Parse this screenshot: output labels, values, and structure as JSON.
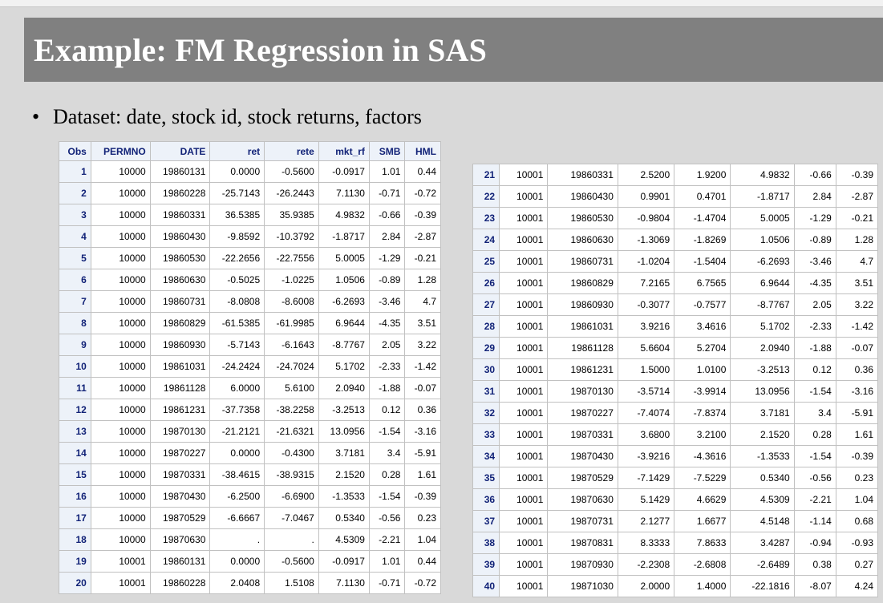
{
  "slide": {
    "title": "Example: FM Regression in SAS",
    "bullet_marker": "•",
    "bullet_text": "Dataset:  date, stock id, stock returns, factors"
  },
  "left_table": {
    "columns": [
      "Obs",
      "PERMNO",
      "DATE",
      "ret",
      "rete",
      "mkt_rf",
      "SMB",
      "HML"
    ],
    "rows": [
      [
        "1",
        "10000",
        "19860131",
        "0.0000",
        "-0.5600",
        "-0.0917",
        "1.01",
        "0.44"
      ],
      [
        "2",
        "10000",
        "19860228",
        "-25.7143",
        "-26.2443",
        "7.1130",
        "-0.71",
        "-0.72"
      ],
      [
        "3",
        "10000",
        "19860331",
        "36.5385",
        "35.9385",
        "4.9832",
        "-0.66",
        "-0.39"
      ],
      [
        "4",
        "10000",
        "19860430",
        "-9.8592",
        "-10.3792",
        "-1.8717",
        "2.84",
        "-2.87"
      ],
      [
        "5",
        "10000",
        "19860530",
        "-22.2656",
        "-22.7556",
        "5.0005",
        "-1.29",
        "-0.21"
      ],
      [
        "6",
        "10000",
        "19860630",
        "-0.5025",
        "-1.0225",
        "1.0506",
        "-0.89",
        "1.28"
      ],
      [
        "7",
        "10000",
        "19860731",
        "-8.0808",
        "-8.6008",
        "-6.2693",
        "-3.46",
        "4.7"
      ],
      [
        "8",
        "10000",
        "19860829",
        "-61.5385",
        "-61.9985",
        "6.9644",
        "-4.35",
        "3.51"
      ],
      [
        "9",
        "10000",
        "19860930",
        "-5.7143",
        "-6.1643",
        "-8.7767",
        "2.05",
        "3.22"
      ],
      [
        "10",
        "10000",
        "19861031",
        "-24.2424",
        "-24.7024",
        "5.1702",
        "-2.33",
        "-1.42"
      ],
      [
        "11",
        "10000",
        "19861128",
        "6.0000",
        "5.6100",
        "2.0940",
        "-1.88",
        "-0.07"
      ],
      [
        "12",
        "10000",
        "19861231",
        "-37.7358",
        "-38.2258",
        "-3.2513",
        "0.12",
        "0.36"
      ],
      [
        "13",
        "10000",
        "19870130",
        "-21.2121",
        "-21.6321",
        "13.0956",
        "-1.54",
        "-3.16"
      ],
      [
        "14",
        "10000",
        "19870227",
        "0.0000",
        "-0.4300",
        "3.7181",
        "3.4",
        "-5.91"
      ],
      [
        "15",
        "10000",
        "19870331",
        "-38.4615",
        "-38.9315",
        "2.1520",
        "0.28",
        "1.61"
      ],
      [
        "16",
        "10000",
        "19870430",
        "-6.2500",
        "-6.6900",
        "-1.3533",
        "-1.54",
        "-0.39"
      ],
      [
        "17",
        "10000",
        "19870529",
        "-6.6667",
        "-7.0467",
        "0.5340",
        "-0.56",
        "0.23"
      ],
      [
        "18",
        "10000",
        "19870630",
        ".",
        ".",
        "4.5309",
        "-2.21",
        "1.04"
      ],
      [
        "19",
        "10001",
        "19860131",
        "0.0000",
        "-0.5600",
        "-0.0917",
        "1.01",
        "0.44"
      ],
      [
        "20",
        "10001",
        "19860228",
        "2.0408",
        "1.5108",
        "7.1130",
        "-0.71",
        "-0.72"
      ]
    ]
  },
  "right_table": {
    "rows": [
      [
        "21",
        "10001",
        "19860331",
        "2.5200",
        "1.9200",
        "4.9832",
        "-0.66",
        "-0.39"
      ],
      [
        "22",
        "10001",
        "19860430",
        "0.9901",
        "0.4701",
        "-1.8717",
        "2.84",
        "-2.87"
      ],
      [
        "23",
        "10001",
        "19860530",
        "-0.9804",
        "-1.4704",
        "5.0005",
        "-1.29",
        "-0.21"
      ],
      [
        "24",
        "10001",
        "19860630",
        "-1.3069",
        "-1.8269",
        "1.0506",
        "-0.89",
        "1.28"
      ],
      [
        "25",
        "10001",
        "19860731",
        "-1.0204",
        "-1.5404",
        "-6.2693",
        "-3.46",
        "4.7"
      ],
      [
        "26",
        "10001",
        "19860829",
        "7.2165",
        "6.7565",
        "6.9644",
        "-4.35",
        "3.51"
      ],
      [
        "27",
        "10001",
        "19860930",
        "-0.3077",
        "-0.7577",
        "-8.7767",
        "2.05",
        "3.22"
      ],
      [
        "28",
        "10001",
        "19861031",
        "3.9216",
        "3.4616",
        "5.1702",
        "-2.33",
        "-1.42"
      ],
      [
        "29",
        "10001",
        "19861128",
        "5.6604",
        "5.2704",
        "2.0940",
        "-1.88",
        "-0.07"
      ],
      [
        "30",
        "10001",
        "19861231",
        "1.5000",
        "1.0100",
        "-3.2513",
        "0.12",
        "0.36"
      ],
      [
        "31",
        "10001",
        "19870130",
        "-3.5714",
        "-3.9914",
        "13.0956",
        "-1.54",
        "-3.16"
      ],
      [
        "32",
        "10001",
        "19870227",
        "-7.4074",
        "-7.8374",
        "3.7181",
        "3.4",
        "-5.91"
      ],
      [
        "33",
        "10001",
        "19870331",
        "3.6800",
        "3.2100",
        "2.1520",
        "0.28",
        "1.61"
      ],
      [
        "34",
        "10001",
        "19870430",
        "-3.9216",
        "-4.3616",
        "-1.3533",
        "-1.54",
        "-0.39"
      ],
      [
        "35",
        "10001",
        "19870529",
        "-7.1429",
        "-7.5229",
        "0.5340",
        "-0.56",
        "0.23"
      ],
      [
        "36",
        "10001",
        "19870630",
        "5.1429",
        "4.6629",
        "4.5309",
        "-2.21",
        "1.04"
      ],
      [
        "37",
        "10001",
        "19870731",
        "2.1277",
        "1.6677",
        "4.5148",
        "-1.14",
        "0.68"
      ],
      [
        "38",
        "10001",
        "19870831",
        "8.3333",
        "7.8633",
        "3.4287",
        "-0.94",
        "-0.93"
      ],
      [
        "39",
        "10001",
        "19870930",
        "-2.2308",
        "-2.6808",
        "-2.6489",
        "0.38",
        "0.27"
      ],
      [
        "40",
        "10001",
        "19871030",
        "2.0000",
        "1.4000",
        "-22.1816",
        "-8.07",
        "4.24"
      ]
    ]
  }
}
